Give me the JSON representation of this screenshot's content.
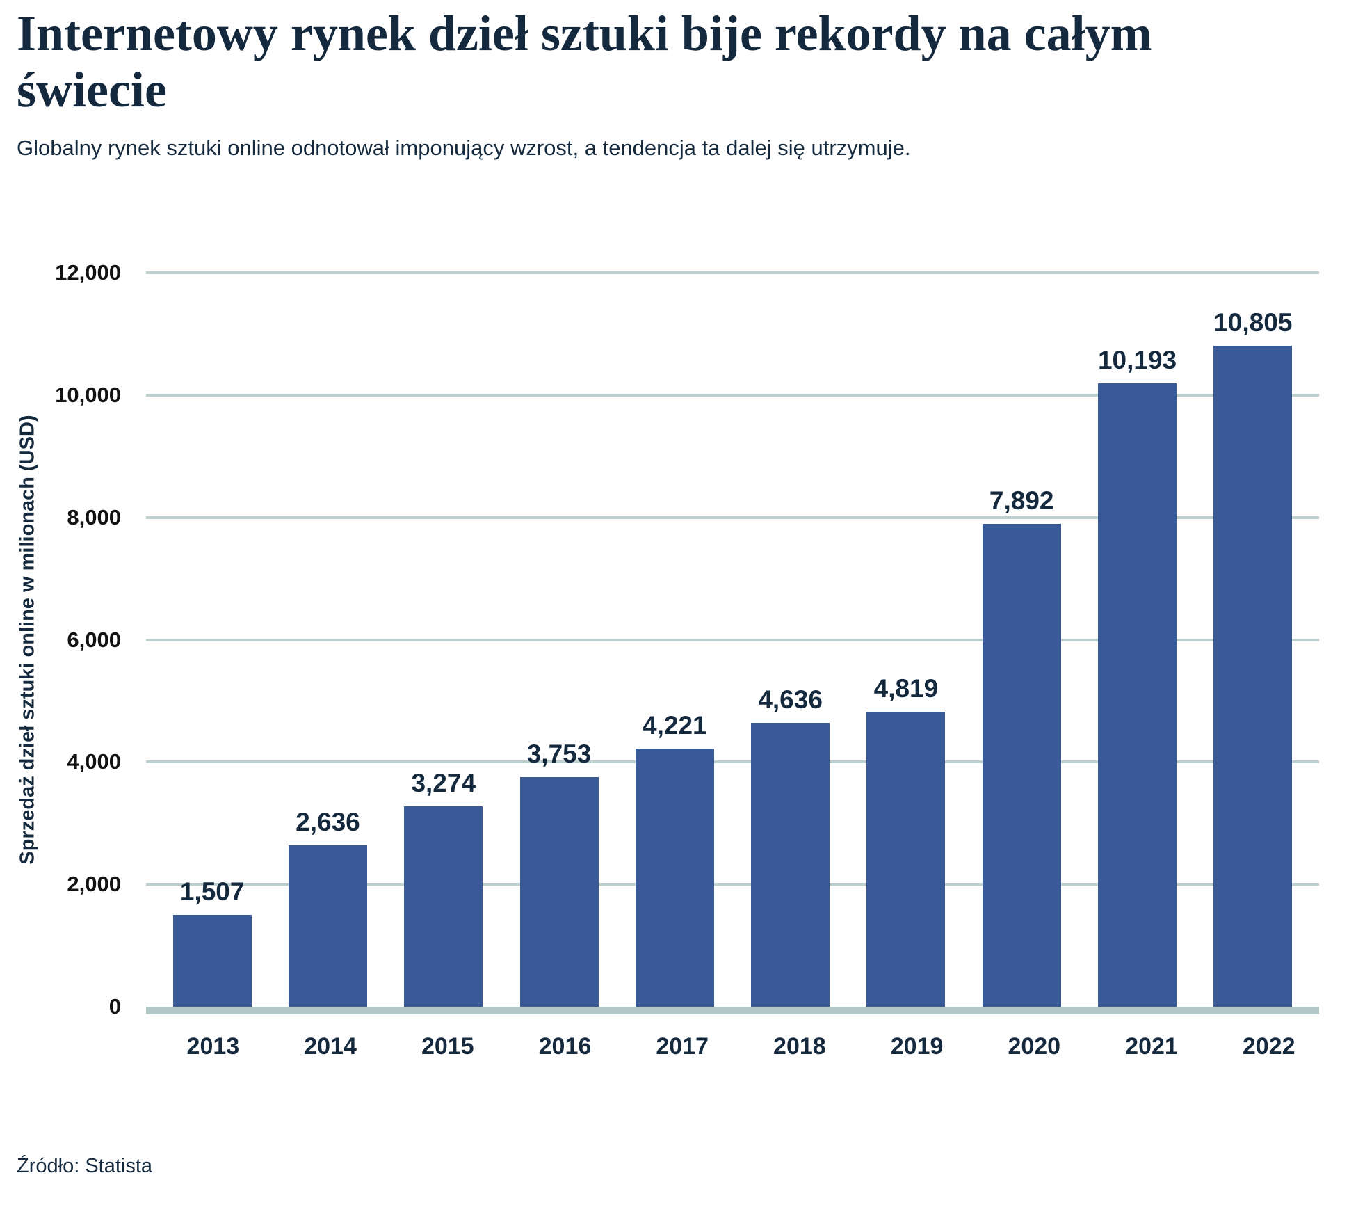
{
  "header": {
    "title": "Internetowy rynek dzieł sztuki bije rekordy na całym świecie",
    "subtitle": "Globalny rynek sztuki online odnotował imponujący wzrost, a tendencja ta dalej się utrzymuje."
  },
  "chart_data": {
    "type": "bar",
    "title": "",
    "categories": [
      "2013",
      "2014",
      "2015",
      "2016",
      "2017",
      "2018",
      "2019",
      "2020",
      "2021",
      "2022"
    ],
    "values": [
      1507,
      2636,
      3274,
      3753,
      4221,
      4636,
      4819,
      7892,
      10193,
      10805
    ],
    "value_labels": [
      "1,507",
      "2,636",
      "3,274",
      "3,753",
      "4,221",
      "4,636",
      "4,819",
      "7,892",
      "10,193",
      "10,805"
    ],
    "xlabel": "",
    "ylabel": "Sprzedaż dzieł sztuki online w milionach (USD)",
    "ylim": [
      0,
      12000
    ],
    "ytick_interval": 2000,
    "ytick_labels": [
      "0",
      "2,000",
      "4,000",
      "6,000",
      "8,000",
      "10,000",
      "12,000"
    ],
    "grid": "horizontal",
    "legend_position": "none",
    "bar_color": "#3A5A97"
  },
  "footer": {
    "source": "Źródło: Statista"
  },
  "colors": {
    "background": "#FFFFFF",
    "bar": "#3A5A97",
    "navy_text": "#14293D",
    "ytick_text": "#121212",
    "gridline": "#BDCFCE",
    "baseline": "#B2C8C7"
  }
}
